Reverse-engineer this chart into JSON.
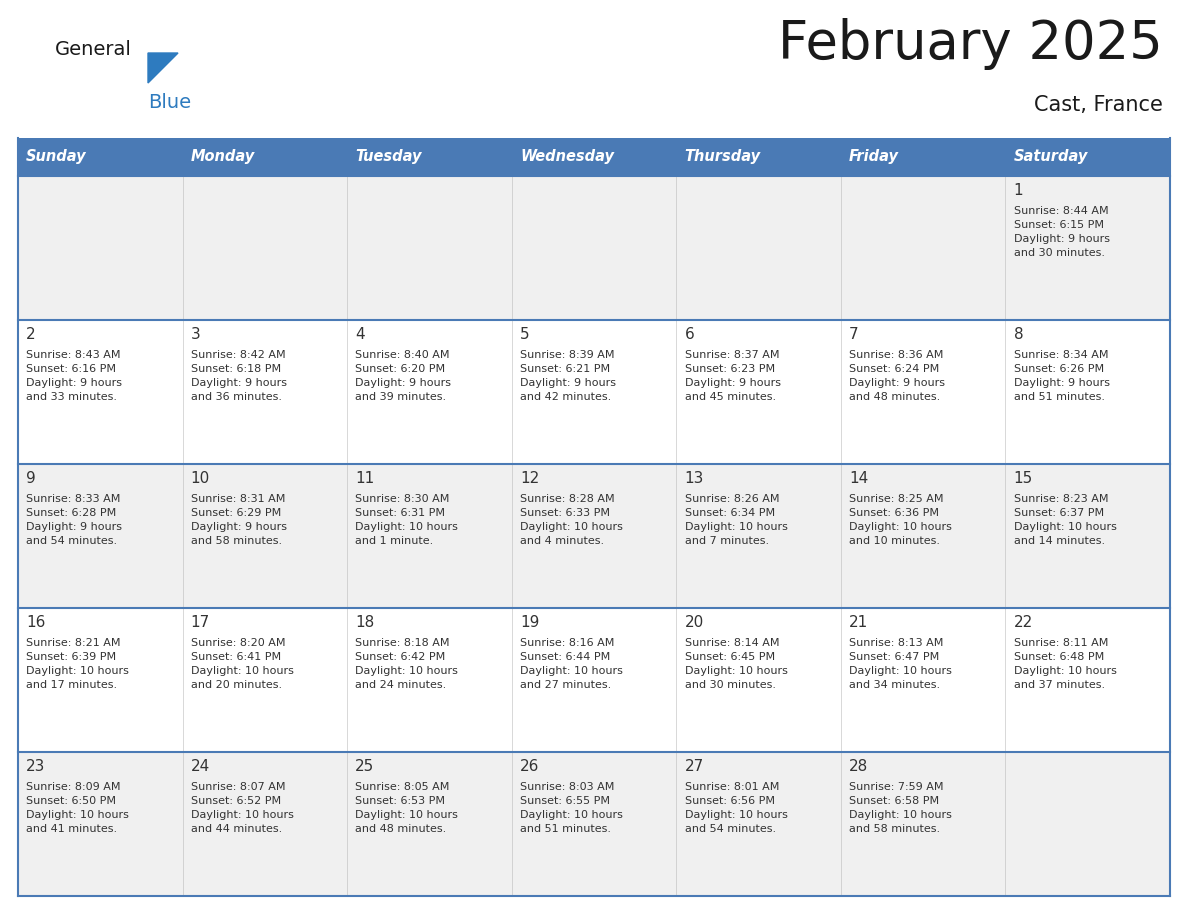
{
  "title": "February 2025",
  "subtitle": "Cast, France",
  "days_of_week": [
    "Sunday",
    "Monday",
    "Tuesday",
    "Wednesday",
    "Thursday",
    "Friday",
    "Saturday"
  ],
  "header_bg": "#4a7ab5",
  "header_text": "#ffffff",
  "cell_bg_odd": "#f0f0f0",
  "cell_bg_even": "#ffffff",
  "border_color": "#4a7ab5",
  "title_color": "#1a1a1a",
  "subtitle_color": "#1a1a1a",
  "text_color": "#333333",
  "logo_general_color": "#1a1a1a",
  "logo_blue_color": "#2e7bbf",
  "weeks": [
    [
      {
        "day": null,
        "info": null
      },
      {
        "day": null,
        "info": null
      },
      {
        "day": null,
        "info": null
      },
      {
        "day": null,
        "info": null
      },
      {
        "day": null,
        "info": null
      },
      {
        "day": null,
        "info": null
      },
      {
        "day": 1,
        "info": "Sunrise: 8:44 AM\nSunset: 6:15 PM\nDaylight: 9 hours\nand 30 minutes."
      }
    ],
    [
      {
        "day": 2,
        "info": "Sunrise: 8:43 AM\nSunset: 6:16 PM\nDaylight: 9 hours\nand 33 minutes."
      },
      {
        "day": 3,
        "info": "Sunrise: 8:42 AM\nSunset: 6:18 PM\nDaylight: 9 hours\nand 36 minutes."
      },
      {
        "day": 4,
        "info": "Sunrise: 8:40 AM\nSunset: 6:20 PM\nDaylight: 9 hours\nand 39 minutes."
      },
      {
        "day": 5,
        "info": "Sunrise: 8:39 AM\nSunset: 6:21 PM\nDaylight: 9 hours\nand 42 minutes."
      },
      {
        "day": 6,
        "info": "Sunrise: 8:37 AM\nSunset: 6:23 PM\nDaylight: 9 hours\nand 45 minutes."
      },
      {
        "day": 7,
        "info": "Sunrise: 8:36 AM\nSunset: 6:24 PM\nDaylight: 9 hours\nand 48 minutes."
      },
      {
        "day": 8,
        "info": "Sunrise: 8:34 AM\nSunset: 6:26 PM\nDaylight: 9 hours\nand 51 minutes."
      }
    ],
    [
      {
        "day": 9,
        "info": "Sunrise: 8:33 AM\nSunset: 6:28 PM\nDaylight: 9 hours\nand 54 minutes."
      },
      {
        "day": 10,
        "info": "Sunrise: 8:31 AM\nSunset: 6:29 PM\nDaylight: 9 hours\nand 58 minutes."
      },
      {
        "day": 11,
        "info": "Sunrise: 8:30 AM\nSunset: 6:31 PM\nDaylight: 10 hours\nand 1 minute."
      },
      {
        "day": 12,
        "info": "Sunrise: 8:28 AM\nSunset: 6:33 PM\nDaylight: 10 hours\nand 4 minutes."
      },
      {
        "day": 13,
        "info": "Sunrise: 8:26 AM\nSunset: 6:34 PM\nDaylight: 10 hours\nand 7 minutes."
      },
      {
        "day": 14,
        "info": "Sunrise: 8:25 AM\nSunset: 6:36 PM\nDaylight: 10 hours\nand 10 minutes."
      },
      {
        "day": 15,
        "info": "Sunrise: 8:23 AM\nSunset: 6:37 PM\nDaylight: 10 hours\nand 14 minutes."
      }
    ],
    [
      {
        "day": 16,
        "info": "Sunrise: 8:21 AM\nSunset: 6:39 PM\nDaylight: 10 hours\nand 17 minutes."
      },
      {
        "day": 17,
        "info": "Sunrise: 8:20 AM\nSunset: 6:41 PM\nDaylight: 10 hours\nand 20 minutes."
      },
      {
        "day": 18,
        "info": "Sunrise: 8:18 AM\nSunset: 6:42 PM\nDaylight: 10 hours\nand 24 minutes."
      },
      {
        "day": 19,
        "info": "Sunrise: 8:16 AM\nSunset: 6:44 PM\nDaylight: 10 hours\nand 27 minutes."
      },
      {
        "day": 20,
        "info": "Sunrise: 8:14 AM\nSunset: 6:45 PM\nDaylight: 10 hours\nand 30 minutes."
      },
      {
        "day": 21,
        "info": "Sunrise: 8:13 AM\nSunset: 6:47 PM\nDaylight: 10 hours\nand 34 minutes."
      },
      {
        "day": 22,
        "info": "Sunrise: 8:11 AM\nSunset: 6:48 PM\nDaylight: 10 hours\nand 37 minutes."
      }
    ],
    [
      {
        "day": 23,
        "info": "Sunrise: 8:09 AM\nSunset: 6:50 PM\nDaylight: 10 hours\nand 41 minutes."
      },
      {
        "day": 24,
        "info": "Sunrise: 8:07 AM\nSunset: 6:52 PM\nDaylight: 10 hours\nand 44 minutes."
      },
      {
        "day": 25,
        "info": "Sunrise: 8:05 AM\nSunset: 6:53 PM\nDaylight: 10 hours\nand 48 minutes."
      },
      {
        "day": 26,
        "info": "Sunrise: 8:03 AM\nSunset: 6:55 PM\nDaylight: 10 hours\nand 51 minutes."
      },
      {
        "day": 27,
        "info": "Sunrise: 8:01 AM\nSunset: 6:56 PM\nDaylight: 10 hours\nand 54 minutes."
      },
      {
        "day": 28,
        "info": "Sunrise: 7:59 AM\nSunset: 6:58 PM\nDaylight: 10 hours\nand 58 minutes."
      },
      {
        "day": null,
        "info": null
      }
    ]
  ]
}
